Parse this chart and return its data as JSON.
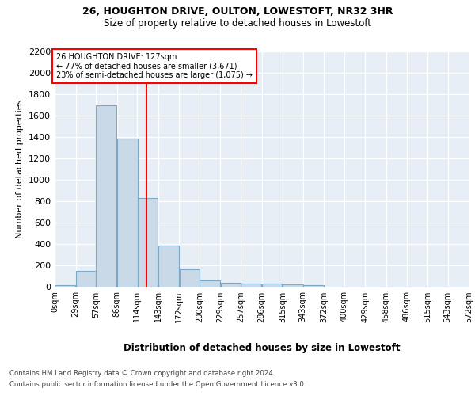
{
  "title1": "26, HOUGHTON DRIVE, OULTON, LOWESTOFT, NR32 3HR",
  "title2": "Size of property relative to detached houses in Lowestoft",
  "xlabel": "Distribution of detached houses by size in Lowestoft",
  "ylabel": "Number of detached properties",
  "footer1": "Contains HM Land Registry data © Crown copyright and database right 2024.",
  "footer2": "Contains public sector information licensed under the Open Government Licence v3.0.",
  "annotation_line1": "26 HOUGHTON DRIVE: 127sqm",
  "annotation_line2": "← 77% of detached houses are smaller (3,671)",
  "annotation_line3": "23% of semi-detached houses are larger (1,075) →",
  "bar_left_edges": [
    0,
    29,
    57,
    86,
    114,
    143,
    172,
    200,
    229,
    257,
    286,
    315,
    343,
    372,
    400,
    429,
    458,
    486,
    515,
    543
  ],
  "bar_width": 28.5,
  "bar_heights": [
    20,
    155,
    1700,
    1390,
    835,
    385,
    165,
    65,
    40,
    30,
    30,
    25,
    15,
    0,
    0,
    0,
    0,
    0,
    0,
    0
  ],
  "bar_color": "#c9d9e8",
  "bar_edge_color": "#7aaac8",
  "marker_x": 127,
  "marker_color": "red",
  "ylim": [
    0,
    2200
  ],
  "xlim": [
    0,
    572
  ],
  "tick_positions": [
    0,
    29,
    57,
    86,
    114,
    143,
    172,
    200,
    229,
    257,
    286,
    315,
    343,
    372,
    400,
    429,
    458,
    486,
    515,
    543,
    572
  ],
  "tick_labels": [
    "0sqm",
    "29sqm",
    "57sqm",
    "86sqm",
    "114sqm",
    "143sqm",
    "172sqm",
    "200sqm",
    "229sqm",
    "257sqm",
    "286sqm",
    "315sqm",
    "343sqm",
    "372sqm",
    "400sqm",
    "429sqm",
    "458sqm",
    "486sqm",
    "515sqm",
    "543sqm",
    "572sqm"
  ],
  "ytick_positions": [
    0,
    200,
    400,
    600,
    800,
    1000,
    1200,
    1400,
    1600,
    1800,
    2000,
    2200
  ],
  "plot_bg_color": "#e8eef5",
  "fig_bg_color": "#ffffff"
}
